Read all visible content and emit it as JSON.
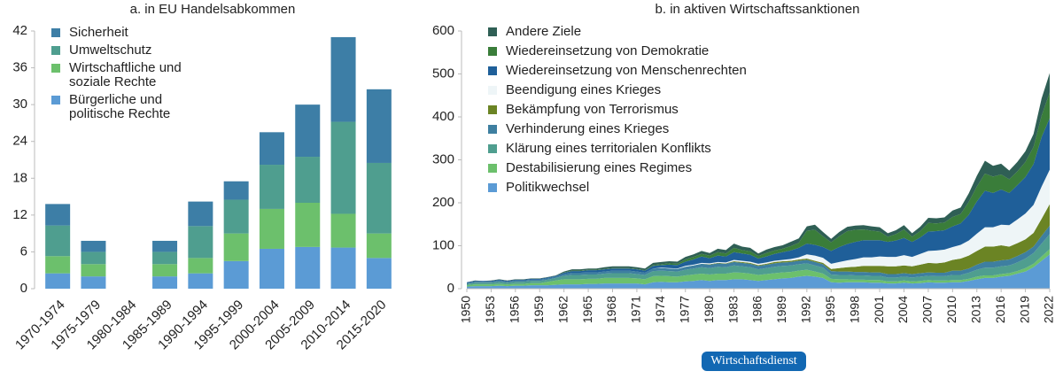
{
  "chart_data": [
    {
      "type": "bar",
      "stacked": true,
      "title": "a. in EU Handelsabkommen",
      "categories": [
        "1970-1974",
        "1975-1979",
        "1980-1984",
        "1985-1989",
        "1990-1994",
        "1995-1999",
        "2000-2004",
        "2005-2009",
        "2010-2014",
        "2015-2020"
      ],
      "series": [
        {
          "name": "Bürgerliche und politische Rechte",
          "color": "#5b9bd5",
          "values": [
            2.5,
            2,
            0,
            2,
            2.5,
            4.5,
            6.5,
            6.8,
            6.7,
            5
          ]
        },
        {
          "name": "Wirtschaftliche und soziale Rechte",
          "color": "#6cc06c",
          "values": [
            2.8,
            2,
            0,
            2,
            2.5,
            4.5,
            6.5,
            7.2,
            5.5,
            4
          ]
        },
        {
          "name": "Umweltschutz",
          "color": "#4f9e8f",
          "values": [
            5,
            2,
            0,
            2,
            5.2,
            5.5,
            7.2,
            7.5,
            15,
            11.5
          ]
        },
        {
          "name": "Sicherheit",
          "color": "#3d7ea6",
          "values": [
            3.5,
            1.8,
            0,
            1.8,
            4,
            3,
            5.3,
            8.5,
            13.8,
            12
          ]
        }
      ],
      "ylim": [
        0,
        42
      ],
      "yticks": [
        0,
        6,
        12,
        18,
        24,
        30,
        36,
        42
      ],
      "legend": "upper left"
    },
    {
      "type": "area",
      "stacked": true,
      "title": "b. in aktiven Wirtschaftssanktionen",
      "x": [
        1950,
        1951,
        1952,
        1953,
        1954,
        1955,
        1956,
        1957,
        1958,
        1959,
        1960,
        1961,
        1962,
        1963,
        1964,
        1965,
        1966,
        1967,
        1968,
        1969,
        1970,
        1971,
        1972,
        1973,
        1974,
        1975,
        1976,
        1977,
        1978,
        1979,
        1980,
        1981,
        1982,
        1983,
        1984,
        1985,
        1986,
        1987,
        1988,
        1989,
        1990,
        1991,
        1992,
        1993,
        1994,
        1995,
        1996,
        1997,
        1998,
        1999,
        2000,
        2001,
        2002,
        2003,
        2004,
        2005,
        2006,
        2007,
        2008,
        2009,
        2010,
        2011,
        2012,
        2013,
        2014,
        2015,
        2016,
        2017,
        2018,
        2019,
        2020,
        2021,
        2022
      ],
      "series": [
        {
          "name": "Politikwechsel",
          "color": "#5b9bd5",
          "values": [
            5,
            6,
            6,
            6,
            7,
            6,
            7,
            7,
            8,
            8,
            8,
            9,
            10,
            10,
            10,
            11,
            11,
            12,
            12,
            12,
            12,
            12,
            10,
            15,
            16,
            15,
            15,
            17,
            18,
            20,
            18,
            20,
            20,
            22,
            22,
            20,
            18,
            20,
            22,
            24,
            25,
            28,
            30,
            28,
            25,
            15,
            14,
            15,
            15,
            15,
            14,
            14,
            12,
            12,
            14,
            12,
            13,
            15,
            14,
            14,
            15,
            15,
            18,
            22,
            25,
            25,
            28,
            30,
            35,
            40,
            50,
            65,
            80
          ]
        },
        {
          "name": "Destabilisierung eines Regimes",
          "color": "#6cc06c",
          "values": [
            3,
            4,
            4,
            4,
            4,
            4,
            4,
            4,
            5,
            5,
            8,
            10,
            12,
            12,
            12,
            12,
            12,
            13,
            13,
            13,
            13,
            12,
            12,
            14,
            14,
            14,
            13,
            14,
            15,
            15,
            15,
            15,
            15,
            16,
            15,
            15,
            14,
            14,
            14,
            14,
            14,
            14,
            14,
            12,
            10,
            8,
            8,
            7,
            6,
            6,
            6,
            6,
            5,
            5,
            5,
            5,
            5,
            5,
            5,
            5,
            5,
            5,
            5,
            6,
            6,
            6,
            6,
            6,
            6,
            8,
            8,
            10,
            12
          ]
        },
        {
          "name": "Klärung eines territorialen Konflikts",
          "color": "#4f9e8f",
          "values": [
            3,
            4,
            4,
            4,
            5,
            4,
            5,
            5,
            5,
            5,
            5,
            6,
            8,
            10,
            10,
            10,
            10,
            10,
            11,
            11,
            11,
            10,
            10,
            12,
            12,
            12,
            12,
            13,
            14,
            15,
            15,
            16,
            15,
            16,
            15,
            15,
            13,
            14,
            15,
            15,
            15,
            15,
            15,
            14,
            14,
            10,
            10,
            10,
            10,
            10,
            10,
            10,
            9,
            9,
            9,
            9,
            10,
            10,
            10,
            10,
            12,
            12,
            14,
            16,
            18,
            18,
            18,
            18,
            20,
            22,
            25,
            30,
            35
          ]
        },
        {
          "name": "Verhinderung eines Krieges",
          "color": "#3e7fa0",
          "values": [
            2,
            2,
            2,
            2,
            3,
            2,
            3,
            3,
            3,
            3,
            3,
            3,
            4,
            5,
            5,
            5,
            5,
            5,
            6,
            6,
            6,
            6,
            5,
            6,
            6,
            6,
            6,
            7,
            7,
            8,
            8,
            8,
            8,
            8,
            8,
            8,
            8,
            8,
            8,
            8,
            8,
            8,
            8,
            8,
            8,
            8,
            8,
            8,
            8,
            8,
            8,
            8,
            8,
            8,
            8,
            8,
            8,
            8,
            8,
            8,
            10,
            10,
            10,
            12,
            14,
            14,
            14,
            14,
            15,
            15,
            15,
            18,
            20
          ]
        },
        {
          "name": "Bekämpfung von Terrorismus",
          "color": "#6b8424",
          "values": [
            0,
            0,
            0,
            0,
            0,
            0,
            0,
            0,
            0,
            0,
            0,
            0,
            0,
            0,
            0,
            0,
            0,
            0,
            0,
            0,
            0,
            0,
            0,
            0,
            0,
            0,
            0,
            0,
            0,
            0,
            1,
            1,
            1,
            2,
            2,
            2,
            2,
            2,
            3,
            3,
            3,
            3,
            3,
            3,
            3,
            5,
            8,
            10,
            12,
            14,
            15,
            15,
            18,
            18,
            18,
            18,
            20,
            22,
            22,
            24,
            25,
            28,
            30,
            32,
            35,
            35,
            35,
            30,
            30,
            30,
            32,
            40,
            50
          ]
        },
        {
          "name": "Beendigung eines Krieges",
          "color": "#eef5f7",
          "values": [
            0,
            0,
            0,
            0,
            0,
            0,
            0,
            0,
            0,
            0,
            0,
            0,
            0,
            0,
            0,
            0,
            0,
            0,
            0,
            0,
            0,
            0,
            0,
            0,
            1,
            1,
            1,
            2,
            2,
            2,
            2,
            2,
            2,
            3,
            3,
            3,
            3,
            3,
            3,
            3,
            4,
            5,
            10,
            12,
            12,
            12,
            14,
            16,
            18,
            20,
            20,
            22,
            22,
            22,
            24,
            22,
            25,
            28,
            30,
            30,
            30,
            32,
            35,
            40,
            45,
            45,
            48,
            50,
            55,
            60,
            65,
            75,
            80
          ]
        },
        {
          "name": "Wiedereinsetzung von Menschenrechten",
          "color": "#1f5f99",
          "values": [
            2,
            2,
            2,
            2,
            2,
            2,
            2,
            2,
            2,
            2,
            2,
            2,
            3,
            4,
            4,
            5,
            5,
            5,
            5,
            5,
            5,
            5,
            5,
            6,
            6,
            8,
            8,
            10,
            12,
            15,
            12,
            15,
            14,
            18,
            17,
            16,
            12,
            14,
            16,
            18,
            20,
            22,
            25,
            25,
            25,
            30,
            35,
            38,
            40,
            40,
            40,
            38,
            35,
            38,
            40,
            35,
            38,
            45,
            45,
            45,
            48,
            50,
            60,
            75,
            85,
            80,
            82,
            75,
            80,
            85,
            95,
            115,
            120
          ]
        },
        {
          "name": "Wiedereinsetzung von Demokratie",
          "color": "#3a7d3a",
          "values": [
            0,
            0,
            0,
            0,
            0,
            0,
            0,
            0,
            0,
            0,
            0,
            0,
            1,
            1,
            1,
            1,
            1,
            1,
            1,
            1,
            1,
            1,
            1,
            2,
            2,
            3,
            3,
            5,
            6,
            6,
            6,
            8,
            7,
            10,
            8,
            8,
            6,
            8,
            8,
            8,
            10,
            12,
            30,
            35,
            25,
            20,
            25,
            30,
            28,
            25,
            22,
            20,
            12,
            15,
            20,
            12,
            15,
            20,
            18,
            18,
            22,
            22,
            30,
            35,
            40,
            38,
            35,
            32,
            32,
            35,
            40,
            50,
            60
          ]
        },
        {
          "name": "Andere Ziele",
          "color": "#2f5f55",
          "values": [
            0,
            1,
            0,
            1,
            1,
            1,
            1,
            1,
            1,
            1,
            1,
            1,
            2,
            3,
            3,
            3,
            3,
            4,
            4,
            4,
            4,
            4,
            4,
            5,
            5,
            5,
            5,
            6,
            6,
            7,
            6,
            8,
            8,
            10,
            8,
            8,
            6,
            8,
            8,
            8,
            10,
            10,
            10,
            12,
            10,
            8,
            10,
            10,
            10,
            10,
            10,
            10,
            8,
            9,
            10,
            8,
            10,
            12,
            12,
            12,
            15,
            15,
            20,
            25,
            30,
            25,
            25,
            20,
            22,
            25,
            30,
            40,
            45
          ]
        }
      ],
      "xlim": [
        1950,
        2022
      ],
      "xticks": [
        1950,
        1953,
        1956,
        1959,
        1962,
        1965,
        1968,
        1971,
        1974,
        1977,
        1980,
        1983,
        1986,
        1989,
        1992,
        1995,
        1998,
        2001,
        2004,
        2007,
        2010,
        2013,
        2016,
        2019,
        2022
      ],
      "ylim": [
        0,
        600
      ],
      "yticks": [
        0,
        100,
        200,
        300,
        400,
        500,
        600
      ],
      "legend": "upper left"
    }
  ],
  "footer": {
    "badge": "Wirtschaftsdienst"
  }
}
